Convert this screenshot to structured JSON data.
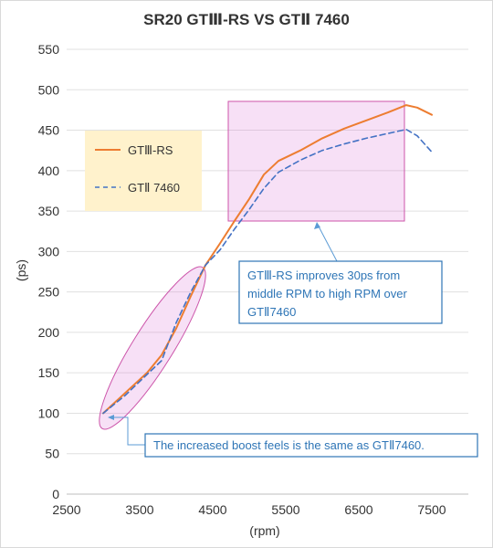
{
  "chart_data": {
    "type": "line",
    "title": "SR20 GTⅢ-RS VS GTⅡ 7460",
    "xlabel": "(rpm)",
    "ylabel": "(ps)",
    "xlim": [
      2500,
      8000
    ],
    "ylim": [
      0,
      550
    ],
    "x_ticks": [
      "2500",
      "3500",
      "4500",
      "5500",
      "6500",
      "7500"
    ],
    "y_ticks": [
      "0",
      "50",
      "100",
      "150",
      "200",
      "250",
      "300",
      "350",
      "400",
      "450",
      "500",
      "550"
    ],
    "grid": "horizontal",
    "legend_position": "top-left",
    "series": [
      {
        "name": "GTⅢ-RS",
        "color": "#ed7d31",
        "style": "solid",
        "points": [
          [
            3000,
            100
          ],
          [
            3300,
            125
          ],
          [
            3600,
            150
          ],
          [
            3800,
            172
          ],
          [
            4000,
            205
          ],
          [
            4200,
            245
          ],
          [
            4400,
            283
          ],
          [
            4600,
            310
          ],
          [
            4800,
            338
          ],
          [
            5000,
            365
          ],
          [
            5200,
            395
          ],
          [
            5400,
            412
          ],
          [
            5700,
            425
          ],
          [
            6000,
            440
          ],
          [
            6300,
            452
          ],
          [
            6600,
            462
          ],
          [
            6900,
            472
          ],
          [
            7150,
            481
          ],
          [
            7300,
            478
          ],
          [
            7500,
            469
          ]
        ]
      },
      {
        "name": "GTⅡ 7460",
        "color": "#4472c4",
        "style": "dashed",
        "points": [
          [
            3000,
            100
          ],
          [
            3300,
            122
          ],
          [
            3600,
            148
          ],
          [
            3800,
            165
          ],
          [
            4000,
            212
          ],
          [
            4200,
            250
          ],
          [
            4400,
            283
          ],
          [
            4600,
            302
          ],
          [
            4800,
            328
          ],
          [
            5000,
            352
          ],
          [
            5200,
            378
          ],
          [
            5400,
            398
          ],
          [
            5700,
            413
          ],
          [
            6000,
            425
          ],
          [
            6300,
            433
          ],
          [
            6600,
            440
          ],
          [
            6900,
            446
          ],
          [
            7150,
            451
          ],
          [
            7300,
            443
          ],
          [
            7500,
            423
          ]
        ]
      }
    ],
    "annotations": [
      "GTⅢ-RS improves 30ps from middle RPM to high RPM over GTⅡ7460",
      "The increased boost feels is the same as GTⅡ7460."
    ]
  }
}
